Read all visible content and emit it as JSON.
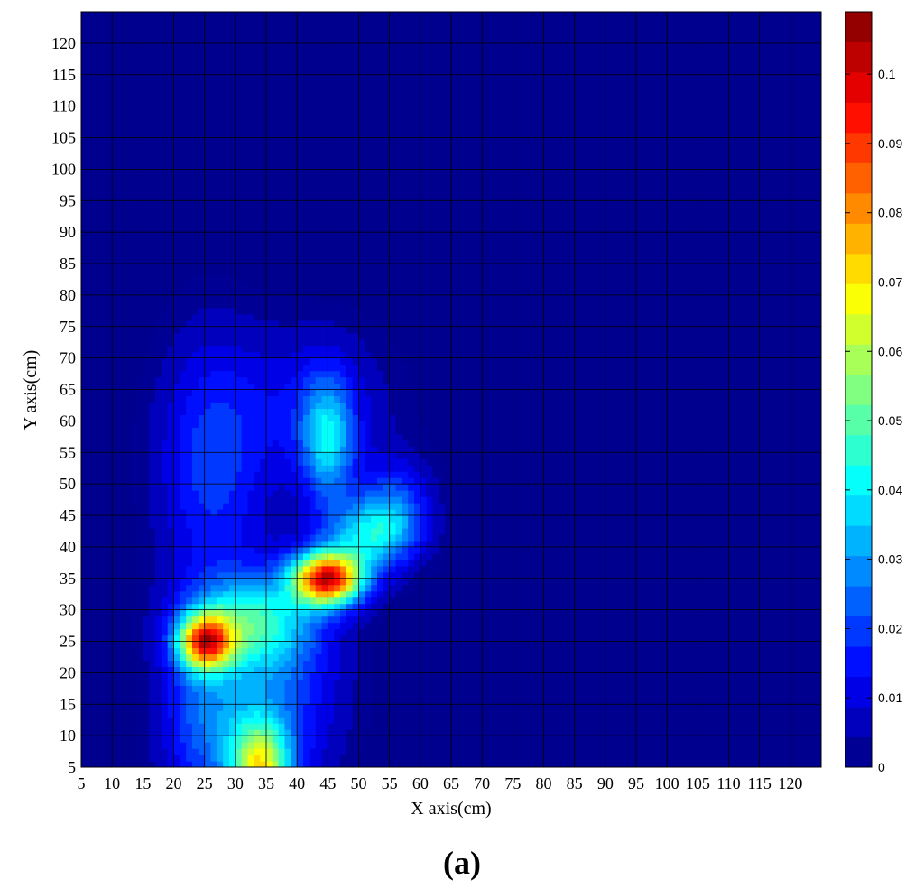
{
  "panel_label": "(a)",
  "chart_data": {
    "type": "heatmap",
    "title": "",
    "xlabel": "X axis(cm)",
    "ylabel": "Y axis(cm)",
    "xlim": [
      5,
      125
    ],
    "ylim": [
      5,
      125
    ],
    "grid": true,
    "colormap": "jet",
    "x_ticks": [
      5,
      10,
      15,
      20,
      25,
      30,
      35,
      40,
      45,
      50,
      55,
      60,
      65,
      70,
      75,
      80,
      85,
      90,
      95,
      100,
      105,
      110,
      115,
      120
    ],
    "x_tick_labels": [
      "5",
      "10",
      "15",
      "20",
      "25",
      "30",
      "35",
      "40",
      "45",
      "50",
      "55",
      "60",
      "65",
      "70",
      "75",
      "80",
      "85",
      "90",
      "95",
      "100",
      "105",
      "110",
      "115",
      "120"
    ],
    "y_ticks": [
      5,
      10,
      15,
      20,
      25,
      30,
      35,
      40,
      45,
      50,
      55,
      60,
      65,
      70,
      75,
      80,
      85,
      90,
      95,
      100,
      105,
      110,
      115,
      120
    ],
    "y_tick_labels": [
      "5",
      "10",
      "15",
      "20",
      "25",
      "30",
      "35",
      "40",
      "45",
      "50",
      "55",
      "60",
      "65",
      "70",
      "75",
      "80",
      "85",
      "90",
      "95",
      "100",
      "105",
      "110",
      "115",
      "120"
    ],
    "colorbar": {
      "range": [
        0,
        0.109
      ],
      "ticks": [
        0,
        0.01,
        0.02,
        0.03,
        0.04,
        0.05,
        0.06,
        0.07,
        0.08,
        0.09,
        0.1
      ],
      "tick_labels": [
        "0",
        "0.01",
        "0.02",
        "0.03",
        "0.04",
        "0.05",
        "0.06",
        "0.07",
        "0.08",
        "0.09",
        "0.1"
      ]
    },
    "hotspots": [
      {
        "x": 45,
        "y": 35,
        "value": 0.109
      },
      {
        "x": 25,
        "y": 25,
        "value": 0.096
      },
      {
        "x": 35,
        "y": 5,
        "value": 0.07
      },
      {
        "x": 45,
        "y": 55,
        "value": 0.04
      }
    ]
  }
}
